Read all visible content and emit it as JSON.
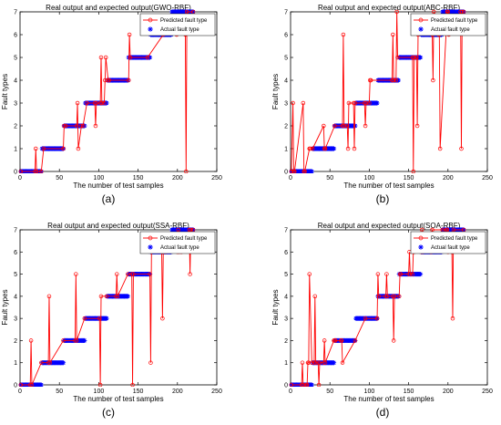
{
  "chart_data": [
    {
      "panel_label": "(a)",
      "type": "line",
      "title": "Real output and expected output(GWO-RBF)",
      "xlabel": "The number of test samples",
      "ylabel": "Fault types",
      "xlim": [
        0,
        250
      ],
      "ylim": [
        0,
        7
      ],
      "xticks": [
        "0",
        "50",
        "100",
        "150",
        "200",
        "250"
      ],
      "yticks": [
        "0",
        "1",
        "2",
        "3",
        "4",
        "5",
        "6",
        "7"
      ],
      "legend_position": "top-right",
      "series": [
        {
          "name": "Predicted fault type",
          "color": "#ff0000",
          "marker": "circle",
          "x": [
            1,
            19,
            20,
            21,
            27,
            30,
            55,
            56,
            58,
            72,
            73,
            74,
            78,
            80,
            85,
            95,
            96,
            97,
            102,
            103,
            104,
            107,
            108,
            109,
            112,
            113,
            138,
            139,
            140,
            162,
            182,
            199,
            210,
            211,
            212,
            220
          ],
          "y": [
            0,
            0,
            1,
            0,
            0,
            1,
            1,
            2,
            2,
            2,
            3,
            1,
            2,
            2,
            3,
            3,
            2,
            3,
            3,
            5,
            3,
            3,
            4,
            5,
            4,
            4,
            4,
            6,
            5,
            5,
            6,
            6,
            6,
            0,
            7,
            7
          ]
        },
        {
          "name": "Actual fault type",
          "color": "#0000ff",
          "marker": "asterisk",
          "x": [
            1,
            27,
            28,
            55,
            56,
            82,
            83,
            110,
            111,
            137,
            138,
            165,
            166,
            192,
            193,
            220
          ],
          "y": [
            0,
            0,
            1,
            1,
            2,
            2,
            3,
            3,
            4,
            4,
            5,
            5,
            6,
            6,
            7,
            7
          ]
        }
      ]
    },
    {
      "panel_label": "(b)",
      "type": "line",
      "title": "Real output and expected output(ABC-RBF)",
      "xlabel": "The number of test samples",
      "ylabel": "Fault types",
      "xlim": [
        0,
        250
      ],
      "ylim": [
        0,
        7
      ],
      "xticks": [
        "0",
        "50",
        "100",
        "150",
        "200",
        "250"
      ],
      "yticks": [
        "0",
        "1",
        "2",
        "3",
        "4",
        "5",
        "6",
        "7"
      ],
      "legend_position": "top-right",
      "series": [
        {
          "name": "Predicted fault type",
          "color": "#ff0000",
          "marker": "circle",
          "x": [
            1,
            3,
            4,
            5,
            16,
            17,
            18,
            24,
            25,
            28,
            42,
            43,
            44,
            56,
            66,
            67,
            68,
            72,
            73,
            74,
            80,
            81,
            82,
            94,
            95,
            96,
            100,
            101,
            102,
            129,
            130,
            131,
            134,
            135,
            136,
            155,
            156,
            157,
            160,
            161,
            162,
            180,
            181,
            182,
            188,
            189,
            190,
            199,
            200,
            201,
            216,
            217,
            218,
            220
          ],
          "y": [
            0,
            3,
            0,
            0,
            3,
            0,
            0,
            1,
            1,
            1,
            2,
            1,
            1,
            2,
            2,
            6,
            2,
            2,
            1,
            3,
            3,
            1,
            3,
            3,
            2,
            3,
            3,
            4,
            4,
            4,
            6,
            4,
            4,
            7,
            5,
            5,
            0,
            5,
            5,
            2,
            6,
            6,
            4,
            7,
            6,
            6,
            1,
            7,
            7,
            6,
            7,
            1,
            7,
            7
          ]
        },
        {
          "name": "Actual fault type",
          "color": "#0000ff",
          "marker": "asterisk",
          "x": [
            1,
            27,
            28,
            55,
            56,
            82,
            83,
            110,
            111,
            137,
            138,
            165,
            166,
            192,
            193,
            220
          ],
          "y": [
            0,
            0,
            1,
            1,
            2,
            2,
            3,
            3,
            4,
            4,
            5,
            5,
            6,
            6,
            7,
            7
          ]
        }
      ]
    },
    {
      "panel_label": "(c)",
      "type": "line",
      "title": "Real output and expected output(SSA-RBF)",
      "xlabel": "The number of test samples",
      "ylabel": "Fault types",
      "xlim": [
        0,
        250
      ],
      "ylim": [
        0,
        7
      ],
      "xticks": [
        "0",
        "50",
        "100",
        "150",
        "200",
        "250"
      ],
      "yticks": [
        "0",
        "1",
        "2",
        "3",
        "4",
        "5",
        "6",
        "7"
      ],
      "legend_position": "top-right",
      "series": [
        {
          "name": "Predicted fault type",
          "color": "#ff0000",
          "marker": "circle",
          "x": [
            1,
            13,
            14,
            15,
            27,
            36,
            37,
            38,
            55,
            70,
            71,
            72,
            82,
            101,
            102,
            103,
            110,
            122,
            123,
            124,
            137,
            142,
            143,
            144,
            165,
            166,
            167,
            180,
            181,
            182,
            185,
            200,
            201,
            202,
            205,
            215,
            216,
            217,
            220
          ],
          "y": [
            0,
            0,
            2,
            0,
            1,
            1,
            4,
            1,
            2,
            2,
            5,
            2,
            3,
            3,
            0,
            4,
            4,
            4,
            5,
            4,
            5,
            5,
            0,
            5,
            5,
            1,
            6,
            6,
            3,
            6,
            6,
            6,
            7,
            6,
            6,
            7,
            5,
            7,
            7
          ]
        },
        {
          "name": "Actual fault type",
          "color": "#0000ff",
          "marker": "asterisk",
          "x": [
            1,
            27,
            28,
            55,
            56,
            82,
            83,
            110,
            111,
            137,
            138,
            165,
            166,
            192,
            193,
            220
          ],
          "y": [
            0,
            0,
            1,
            1,
            2,
            2,
            3,
            3,
            4,
            4,
            5,
            5,
            6,
            6,
            7,
            7
          ]
        }
      ]
    },
    {
      "panel_label": "(d)",
      "type": "line",
      "title": "Real output and expected output(SOA-RBF)",
      "xlabel": "The number of test samples",
      "ylabel": "Fault types",
      "xlim": [
        0,
        250
      ],
      "ylim": [
        0,
        7
      ],
      "xticks": [
        "0",
        "50",
        "100",
        "150",
        "200",
        "250"
      ],
      "yticks": [
        "0",
        "1",
        "2",
        "3",
        "4",
        "5",
        "6",
        "7"
      ],
      "legend_position": "top-right",
      "series": [
        {
          "name": "Predicted fault type",
          "color": "#ff0000",
          "marker": "circle",
          "x": [
            1,
            14,
            15,
            16,
            20,
            21,
            22,
            23,
            24,
            27,
            30,
            31,
            32,
            35,
            36,
            37,
            42,
            43,
            44,
            55,
            56,
            57,
            64,
            65,
            66,
            82,
            95,
            110,
            111,
            112,
            121,
            122,
            123,
            130,
            131,
            132,
            138,
            139,
            140,
            150,
            151,
            152,
            155,
            156,
            157,
            166,
            167,
            168,
            178,
            179,
            180,
            193,
            198,
            199,
            200,
            205,
            206,
            207,
            220
          ],
          "y": [
            0,
            0,
            1,
            0,
            0,
            0,
            1,
            1,
            5,
            1,
            1,
            4,
            1,
            1,
            0,
            1,
            1,
            2,
            1,
            2,
            2,
            2,
            2,
            2,
            1,
            2,
            3,
            3,
            5,
            4,
            4,
            5,
            4,
            4,
            2,
            4,
            4,
            5,
            5,
            5,
            6,
            5,
            5,
            6,
            6,
            6,
            7,
            6,
            6,
            6,
            7,
            7,
            7,
            7,
            6,
            6,
            3,
            7,
            7
          ]
        },
        {
          "name": "Actual fault type",
          "color": "#0000ff",
          "marker": "asterisk",
          "x": [
            1,
            27,
            28,
            55,
            56,
            82,
            83,
            110,
            111,
            137,
            138,
            165,
            166,
            192,
            193,
            220
          ],
          "y": [
            0,
            0,
            1,
            1,
            2,
            2,
            3,
            3,
            4,
            4,
            5,
            5,
            6,
            6,
            7,
            7
          ]
        }
      ]
    }
  ]
}
